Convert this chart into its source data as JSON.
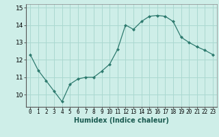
{
  "x": [
    0,
    1,
    2,
    3,
    4,
    5,
    6,
    7,
    8,
    9,
    10,
    11,
    12,
    13,
    14,
    15,
    16,
    17,
    18,
    19,
    20,
    21,
    22,
    23
  ],
  "y": [
    12.3,
    11.4,
    10.8,
    10.2,
    9.6,
    10.6,
    10.9,
    11.0,
    11.0,
    11.35,
    11.75,
    12.6,
    14.0,
    13.75,
    14.2,
    14.5,
    14.55,
    14.5,
    14.2,
    13.3,
    13.0,
    12.75,
    12.55,
    12.3
  ],
  "xlabel": "Humidex (Indice chaleur)",
  "background_color": "#ceeee8",
  "line_color": "#2d7a6e",
  "marker": "D",
  "marker_size": 2,
  "ylim": [
    9.3,
    15.2
  ],
  "xlim": [
    -0.5,
    23.5
  ],
  "yticks": [
    10,
    11,
    12,
    13,
    14,
    15
  ],
  "xticks": [
    0,
    1,
    2,
    3,
    4,
    5,
    6,
    7,
    8,
    9,
    10,
    11,
    12,
    13,
    14,
    15,
    16,
    17,
    18,
    19,
    20,
    21,
    22,
    23
  ],
  "grid_color": "#aad8d0",
  "xlabel_fontsize": 7,
  "tick_fontsize": 5.5,
  "ytick_fontsize": 6.5
}
